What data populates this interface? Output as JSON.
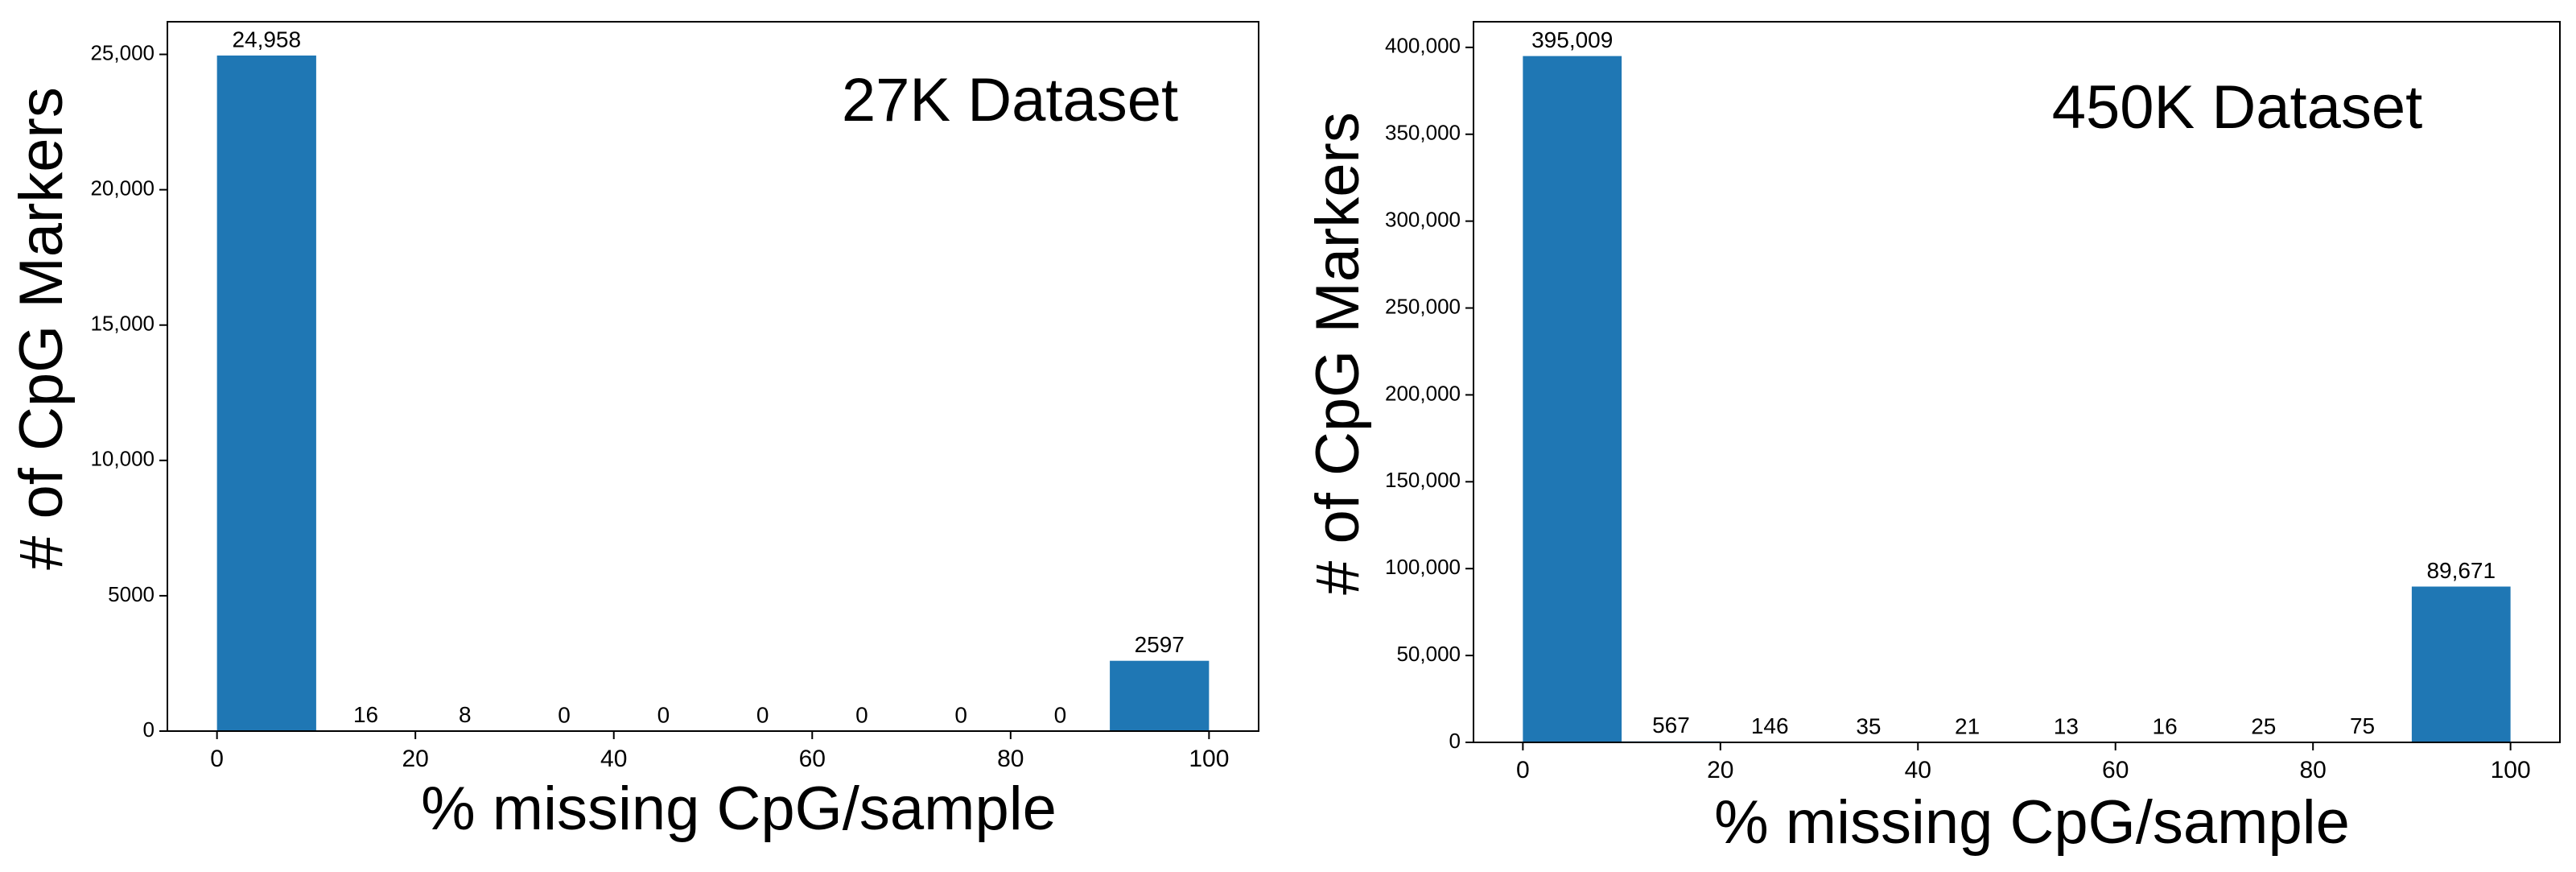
{
  "chart_data": [
    {
      "type": "histogram",
      "title": "27K Dataset",
      "xlabel": "% missing CpG/sample",
      "ylabel": "# of CpG Markers",
      "bins": [
        0,
        10,
        20,
        30,
        40,
        50,
        60,
        70,
        80,
        90,
        100
      ],
      "values": [
        24958,
        16,
        8,
        0,
        0,
        0,
        0,
        0,
        0,
        2597
      ],
      "value_labels": [
        "24,958",
        "16",
        "8",
        "0",
        "0",
        "0",
        "0",
        "0",
        "0",
        "2597"
      ],
      "color": "#1f77b4",
      "xlim": [
        -5,
        105
      ],
      "xticks": [
        0,
        20,
        40,
        60,
        80,
        100
      ],
      "ylim": [
        0,
        26206
      ],
      "yticks": [
        0,
        5000,
        {
          "value": 10000,
          "label": "10,000"
        },
        {
          "value": 15000,
          "label": "15,000"
        },
        {
          "value": 20000,
          "label": "20,000"
        },
        {
          "value": 25000,
          "label": "25,000"
        }
      ]
    },
    {
      "type": "histogram",
      "title": "450K Dataset",
      "xlabel": "% missing CpG/sample",
      "ylabel": "# of CpG Markers",
      "bins": [
        0,
        10,
        20,
        30,
        40,
        50,
        60,
        70,
        80,
        90,
        100
      ],
      "values": [
        395009,
        567,
        146,
        35,
        21,
        13,
        16,
        25,
        75,
        89671
      ],
      "value_labels": [
        "395,009",
        "567",
        "146",
        "35",
        "21",
        "13",
        "16",
        "25",
        "75",
        "89,671"
      ],
      "color": "#1f77b4",
      "xlim": [
        -5,
        105
      ],
      "xticks": [
        0,
        20,
        40,
        60,
        80,
        100
      ],
      "ylim": [
        0,
        414759
      ],
      "yticks": [
        0,
        {
          "value": 50000,
          "label": "50,000"
        },
        {
          "value": 100000,
          "label": "100,000"
        },
        {
          "value": 150000,
          "label": "150,000"
        },
        {
          "value": 200000,
          "label": "200,000"
        },
        {
          "value": 250000,
          "label": "250,000"
        },
        {
          "value": 300000,
          "label": "300,000"
        },
        {
          "value": 350000,
          "label": "350,000"
        },
        {
          "value": 400000,
          "label": "400,000"
        }
      ]
    }
  ]
}
